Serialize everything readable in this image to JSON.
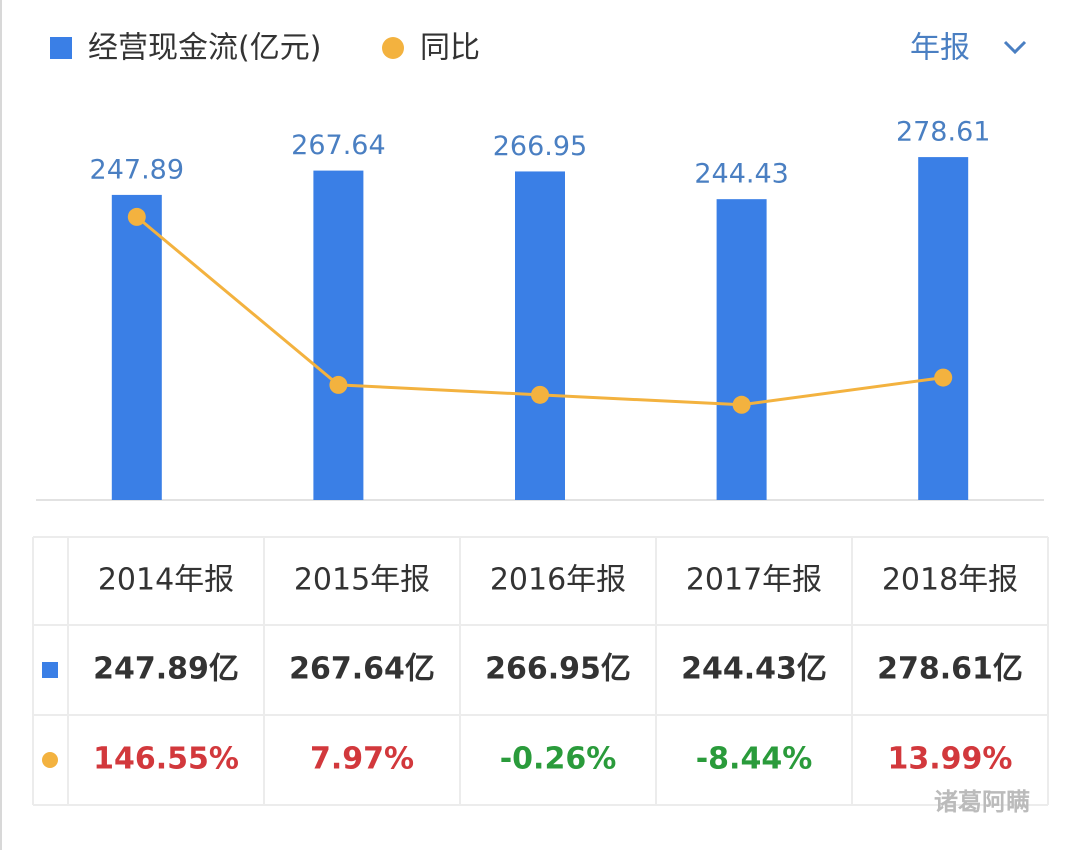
{
  "chart_data": {
    "type": "bar_line",
    "categories": [
      "2014年报",
      "2015年报",
      "2016年报",
      "2017年报",
      "2018年报"
    ],
    "series": [
      {
        "name": "经营现金流(亿元)",
        "type": "bar",
        "color": "#3a7fe6",
        "values": [
          247.89,
          267.64,
          266.95,
          244.43,
          278.61
        ],
        "value_labels": [
          "247.89亿",
          "267.64亿",
          "266.95亿",
          "244.43亿",
          "278.61亿"
        ]
      },
      {
        "name": "同比",
        "type": "line",
        "axis": "y2",
        "color": "#f3b23f",
        "values": [
          146.55,
          7.97,
          -0.26,
          -8.44,
          13.99
        ],
        "value_labels": [
          "146.55%",
          "7.97%",
          "-0.26%",
          "-8.44%",
          "13.99%"
        ]
      }
    ],
    "ylim": [
      0,
      325
    ],
    "y2lim": [
      -87,
      243
    ],
    "positive_color": "#d2383c",
    "negative_color": "#2a9b3b",
    "period_selector": "年报",
    "watermark": "诸葛阿瞒"
  }
}
